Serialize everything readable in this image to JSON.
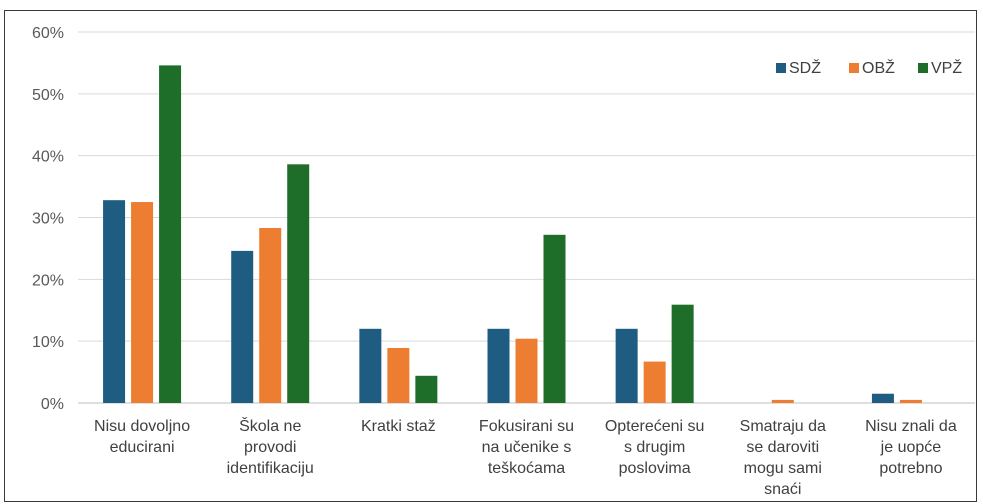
{
  "chart_data": {
    "type": "bar",
    "title": "",
    "xlabel": "",
    "ylabel": "",
    "ylim": [
      0,
      60
    ],
    "yticks": [
      0,
      10,
      20,
      30,
      40,
      50,
      60
    ],
    "ytick_labels": [
      "0%",
      "10%",
      "20%",
      "30%",
      "40%",
      "50%",
      "60%"
    ],
    "grid": true,
    "legend_position": "top-right",
    "categories": [
      [
        "Nisu dovoljno",
        "educirani"
      ],
      [
        "Škola ne",
        "provodi",
        "identifikaciju"
      ],
      [
        "Kratki staž"
      ],
      [
        "Fokusirani su",
        "na učenike s",
        "teškoćama"
      ],
      [
        "Opterećeni su",
        "s drugim",
        "poslovima"
      ],
      [
        "Smatraju da",
        "se daroviti",
        "mogu sami",
        "snaći"
      ],
      [
        "Nisu znali da",
        "je uopće",
        "potrebno"
      ]
    ],
    "series": [
      {
        "name": "SDŽ",
        "color": "#1f5c82",
        "values": [
          32.8,
          24.6,
          12.0,
          12.0,
          12.0,
          0.0,
          1.5
        ]
      },
      {
        "name": "OBŽ",
        "color": "#ed7d31",
        "values": [
          32.5,
          28.3,
          8.9,
          10.4,
          6.7,
          0.5,
          0.5
        ]
      },
      {
        "name": "VPŽ",
        "color": "#1e6e2a",
        "values": [
          54.6,
          38.6,
          4.4,
          27.2,
          15.9,
          0.0,
          0.0
        ]
      }
    ]
  }
}
